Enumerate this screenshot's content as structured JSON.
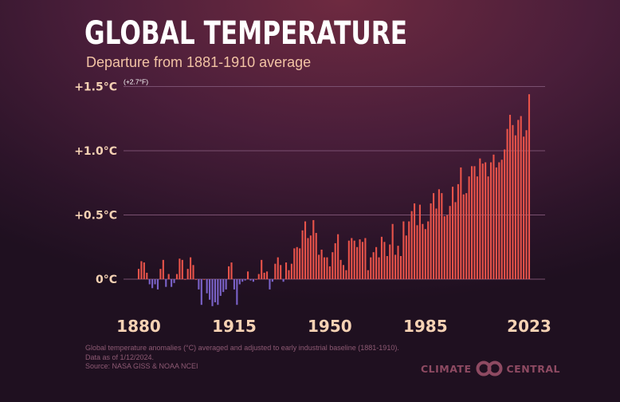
{
  "header": {
    "title": "GLOBAL TEMPERATURE",
    "subtitle": "Departure from 1881-1910 average"
  },
  "footnote": {
    "line1": "Global temperature anomalies (°C) averaged and adjusted to early industrial baseline (1881-1910).",
    "line2": "Data as of 1/12/2024.",
    "line3": "Source: NASA GISS & NOAA NCEI"
  },
  "logo": {
    "left_text": "CLIMATE",
    "right_text": "CENTRAL",
    "icon": "infinity-rings-icon"
  },
  "colors": {
    "positive": "#e8534a",
    "negative": "#7a62c8",
    "gridline": "#7a5070",
    "tick_text": "#f6d2b4"
  },
  "chart_data": {
    "type": "bar",
    "title": "GLOBAL TEMPERATURE",
    "subtitle": "Departure from 1881-1910 average",
    "xlabel": "",
    "ylabel": "°C",
    "ylim": [
      -0.25,
      1.5
    ],
    "grid": true,
    "y_ticks": [
      {
        "value": 0,
        "label": "0°C"
      },
      {
        "value": 0.5,
        "label": "+0.5°C"
      },
      {
        "value": 1.0,
        "label": "+1.0°C"
      },
      {
        "value": 1.5,
        "label": "+1.5°C",
        "note": "(+2.7°F)"
      }
    ],
    "x_ticks": [
      {
        "value": 1880,
        "label": "1880"
      },
      {
        "value": 1915,
        "label": "1915"
      },
      {
        "value": 1950,
        "label": "1950"
      },
      {
        "value": 1985,
        "label": "1985"
      },
      {
        "value": 2023,
        "label": "2023"
      }
    ],
    "x_start": 1880,
    "x_end": 2023,
    "values": [
      0.08,
      0.14,
      0.13,
      0.05,
      -0.04,
      -0.07,
      -0.04,
      -0.08,
      0.08,
      0.15,
      -0.06,
      0.04,
      -0.06,
      -0.03,
      0.04,
      0.16,
      0.15,
      0.0,
      0.08,
      0.17,
      0.11,
      0.0,
      -0.08,
      -0.2,
      0.0,
      -0.11,
      -0.16,
      -0.21,
      -0.18,
      -0.2,
      -0.13,
      -0.1,
      -0.08,
      0.1,
      0.13,
      -0.08,
      -0.2,
      -0.04,
      -0.02,
      -0.01,
      0.06,
      -0.01,
      -0.02,
      0.0,
      0.04,
      0.15,
      0.05,
      0.06,
      -0.08,
      -0.02,
      0.12,
      0.17,
      0.11,
      -0.02,
      0.13,
      0.07,
      0.12,
      0.24,
      0.25,
      0.24,
      0.38,
      0.45,
      0.32,
      0.34,
      0.46,
      0.36,
      0.19,
      0.23,
      0.17,
      0.17,
      0.1,
      0.21,
      0.28,
      0.35,
      0.15,
      0.11,
      0.07,
      0.3,
      0.32,
      0.3,
      0.25,
      0.31,
      0.29,
      0.32,
      0.07,
      0.17,
      0.21,
      0.25,
      0.17,
      0.33,
      0.29,
      0.18,
      0.27,
      0.43,
      0.19,
      0.26,
      0.18,
      0.45,
      0.34,
      0.45,
      0.53,
      0.59,
      0.42,
      0.58,
      0.43,
      0.39,
      0.45,
      0.59,
      0.67,
      0.55,
      0.7,
      0.67,
      0.49,
      0.5,
      0.57,
      0.72,
      0.6,
      0.74,
      0.87,
      0.66,
      0.67,
      0.8,
      0.88,
      0.88,
      0.8,
      0.94,
      0.9,
      0.91,
      0.8,
      0.91,
      0.97,
      0.87,
      0.91,
      0.93,
      1.01,
      1.17,
      1.28,
      1.2,
      1.12,
      1.24,
      1.27,
      1.11,
      1.16,
      1.44
    ]
  }
}
